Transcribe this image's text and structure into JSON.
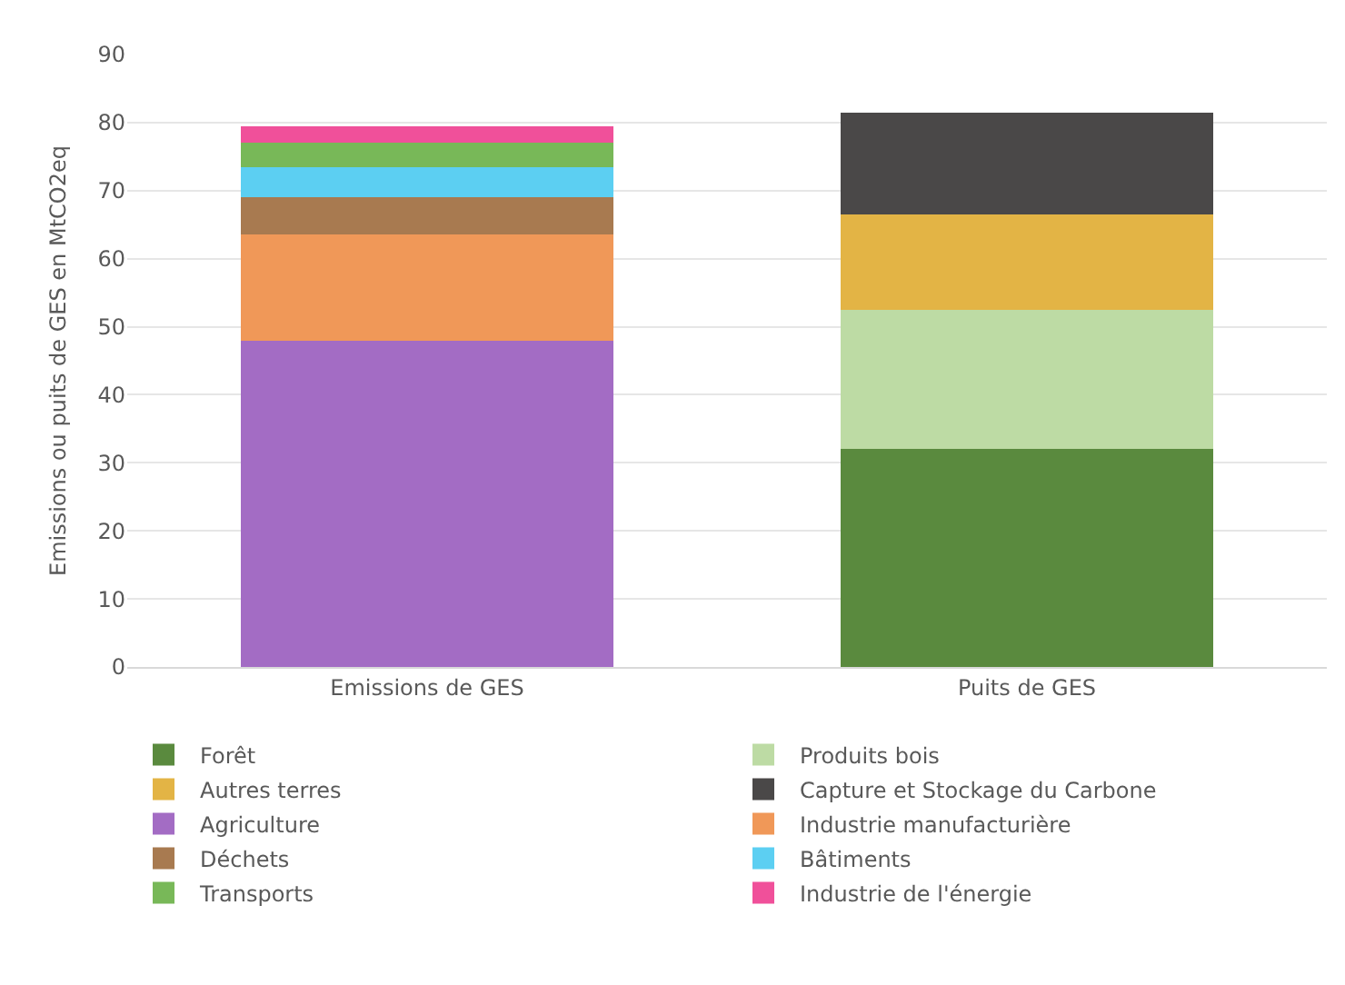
{
  "chart_data": {
    "type": "bar",
    "stacked": true,
    "ylabel": "Emissions ou puits de GES en MtCO2eq",
    "categories": [
      "Emissions de GES",
      "Puits de GES"
    ],
    "ylim": [
      0,
      90
    ],
    "yticks": [
      0,
      10,
      20,
      30,
      40,
      50,
      60,
      70,
      80,
      90
    ],
    "grid": "y",
    "legend": "bottom",
    "series": [
      {
        "name": "Forêt",
        "color": "#5a8a3e",
        "values": [
          null,
          32
        ]
      },
      {
        "name": "Produits bois",
        "color": "#bddba4",
        "values": [
          null,
          20.5
        ]
      },
      {
        "name": "Autres terres",
        "color": "#e3b445",
        "values": [
          null,
          14
        ]
      },
      {
        "name": "Capture et Stockage du Carbone",
        "color": "#4a4848",
        "values": [
          null,
          15
        ]
      },
      {
        "name": "Agriculture",
        "color": "#a36cc4",
        "values": [
          48,
          null
        ]
      },
      {
        "name": "Industrie manufacturière",
        "color": "#f09858",
        "values": [
          15.5,
          null
        ]
      },
      {
        "name": "Déchets",
        "color": "#a87a50",
        "values": [
          5.5,
          null
        ]
      },
      {
        "name": "Bâtiments",
        "color": "#5ccff2",
        "values": [
          4.5,
          null
        ]
      },
      {
        "name": "Transports",
        "color": "#78b858",
        "values": [
          3.5,
          null
        ]
      },
      {
        "name": "Industrie de l'énergie",
        "color": "#f0509a",
        "values": [
          2.5,
          null
        ]
      }
    ]
  }
}
